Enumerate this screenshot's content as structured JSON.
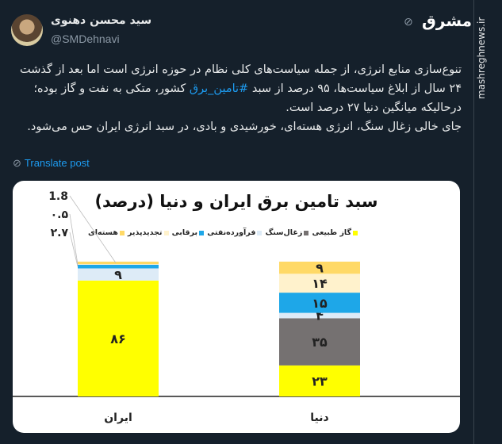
{
  "tweet": {
    "author_name": "سید محسن دهنوی",
    "handle": "@SMDehnavi",
    "text_before_tag": "تنوع‌سازی منابع انرژی، از جمله سیاست‌های کلی نظام در حوزه انرژی است اما بعد از گذشت ۲۴ سال از ابلاغ سیاست‌ها، ۹۵ درصد از سبد ",
    "hashtag": "#تامین_برق",
    "text_after_tag": " کشور، متکی به نفت و گاز بوده؛ درحالیکه میانگین دنیا ۲۷ درصد است.",
    "text_para2": "جای خالی زغال سنگ، انرژی هسته‌ای، خورشیدی و بادی، در سبد انرژی ایران حس می‌شود.",
    "translate_label": "Translate post",
    "translate_icon": "globe-slash-icon"
  },
  "watermark": {
    "site": "mashreghnews.ir",
    "logo": "مشرق"
  },
  "colors": {
    "background": "#15202b",
    "link": "#1d9bf0"
  },
  "chart_data": {
    "type": "stacked-bar",
    "title": "سبد تامین برق ایران و دنیا (درصد)",
    "categories": [
      "ایران",
      "دنیا"
    ],
    "legend_position": "top",
    "series": [
      {
        "name": "گاز طبیعی",
        "color": "#ffff00",
        "values": [
          86,
          23
        ],
        "labels": [
          "۸۶",
          "۲۳"
        ]
      },
      {
        "name": "زغال‌سنگ",
        "color": "#757171",
        "values": [
          0,
          35
        ],
        "labels": [
          "",
          "۳۵"
        ]
      },
      {
        "name": "فرآورده‌نفتی",
        "color": "#ddebf7",
        "values": [
          9,
          4
        ],
        "labels": [
          "۹",
          "۴"
        ]
      },
      {
        "name": "برقابی",
        "color": "#1ea7e8",
        "values": [
          2.7,
          15
        ],
        "labels": [
          "۲.۷",
          "۱۵"
        ]
      },
      {
        "name": "تجدیدپذیر",
        "color": "#fff2cc",
        "values": [
          0.5,
          14
        ],
        "labels": [
          "۰.۵",
          "۱۴"
        ]
      },
      {
        "name": "هسته‌ای",
        "color": "#ffd966",
        "values": [
          1.8,
          9
        ],
        "labels": [
          "1.8",
          "۹"
        ]
      }
    ],
    "ylim": [
      0,
      100
    ]
  }
}
